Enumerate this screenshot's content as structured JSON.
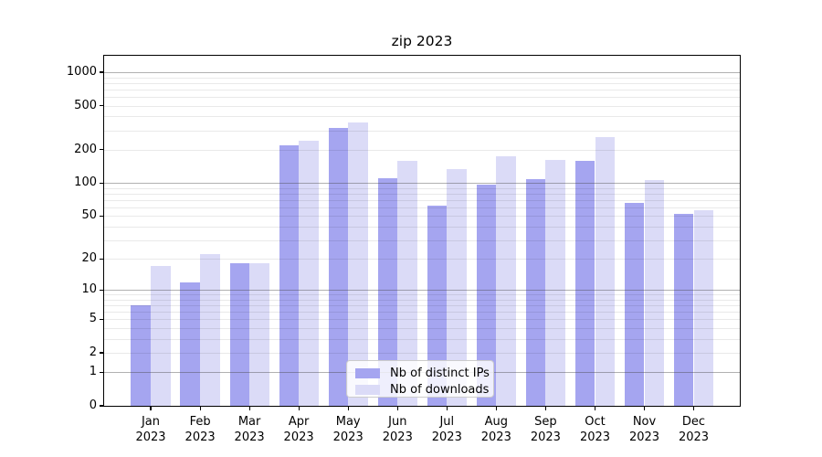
{
  "chart_data": {
    "type": "bar",
    "title": "zip 2023",
    "categories": [
      "Jan 2023",
      "Feb 2023",
      "Mar 2023",
      "Apr 2023",
      "May 2023",
      "Jun 2023",
      "Jul 2023",
      "Aug 2023",
      "Sep 2023",
      "Oct 2023",
      "Nov 2023",
      "Dec 2023"
    ],
    "series": [
      {
        "name": "Nb of distinct IPs",
        "color": "#a5a5f0",
        "values": [
          7,
          12,
          18,
          220,
          315,
          111,
          62,
          96,
          109,
          159,
          66,
          52
        ]
      },
      {
        "name": "Nb of downloads",
        "color": "#dbdbf7",
        "values": [
          17,
          22,
          18,
          242,
          355,
          158,
          133,
          173,
          162,
          258,
          107,
          57
        ]
      }
    ],
    "xlabel": "",
    "ylabel": "",
    "yscale": "log1p",
    "y_ticks": [
      0,
      1,
      2,
      5,
      10,
      20,
      50,
      100,
      200,
      500,
      1000
    ],
    "ylim": [
      0,
      1400
    ],
    "grid": "horizontal major and minor, drawn above bars",
    "legend_position": "lower center"
  }
}
